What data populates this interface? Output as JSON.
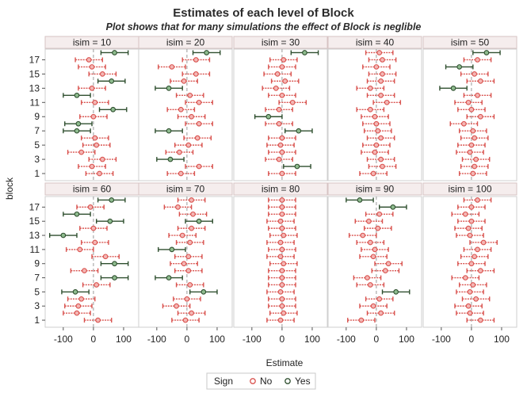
{
  "chart_data": {
    "type": "scatter",
    "title": "Estimates of each level of Block",
    "subtitle": "Plot shows that for many simulations the effect of Block is neglible",
    "xlabel": "Estimate",
    "ylabel": "block",
    "xlim": [
      -160,
      150
    ],
    "ylim": [
      0,
      18.5
    ],
    "x_ticks": [
      -100,
      0,
      100
    ],
    "y_ticks": [
      1,
      3,
      5,
      7,
      9,
      11,
      13,
      15,
      17
    ],
    "grid": false,
    "reference_line_x": 0,
    "legend": {
      "title": "Sign",
      "entries": [
        "No",
        "Yes"
      ],
      "placement": "bottom"
    },
    "colors": {
      "No": "#d9534f",
      "Yes": "#2f4f2f"
    },
    "panels": [
      {
        "label": "isim = 10",
        "estimates": [
          20,
          -5,
          30,
          -40,
          10,
          5,
          -55,
          -50,
          0,
          65,
          5,
          -55,
          -5,
          60,
          30,
          -5,
          -15,
          70
        ],
        "halfwidth": [
          45,
          45,
          45,
          45,
          45,
          45,
          45,
          45,
          45,
          45,
          45,
          45,
          45,
          45,
          45,
          45,
          45,
          45
        ],
        "sign": [
          "No",
          "No",
          "No",
          "No",
          "No",
          "No",
          "Yes",
          "Yes",
          "No",
          "Yes",
          "No",
          "Yes",
          "No",
          "Yes",
          "No",
          "No",
          "No",
          "Yes"
        ]
      },
      {
        "label": "isim = 20",
        "estimates": [
          -20,
          40,
          -55,
          -25,
          5,
          35,
          -60,
          40,
          15,
          -20,
          40,
          10,
          -60,
          -10,
          30,
          -50,
          30,
          65
        ],
        "halfwidth": [
          45,
          45,
          45,
          45,
          45,
          45,
          45,
          45,
          45,
          45,
          45,
          45,
          45,
          45,
          45,
          45,
          45,
          45
        ],
        "sign": [
          "No",
          "No",
          "Yes",
          "No",
          "No",
          "No",
          "Yes",
          "No",
          "No",
          "No",
          "No",
          "No",
          "Yes",
          "No",
          "No",
          "No",
          "No",
          "Yes"
        ]
      },
      {
        "label": "isim = 30",
        "estimates": [
          0,
          50,
          -10,
          0,
          -5,
          0,
          55,
          -10,
          -45,
          -10,
          35,
          0,
          -20,
          10,
          -15,
          0,
          5,
          75
        ],
        "halfwidth": [
          45,
          45,
          45,
          45,
          45,
          45,
          45,
          45,
          45,
          45,
          45,
          45,
          45,
          45,
          45,
          45,
          45,
          45
        ],
        "sign": [
          "No",
          "Yes",
          "No",
          "No",
          "No",
          "No",
          "Yes",
          "No",
          "Yes",
          "No",
          "No",
          "No",
          "No",
          "No",
          "No",
          "No",
          "No",
          "Yes"
        ]
      },
      {
        "label": "isim = 40",
        "estimates": [
          -10,
          20,
          15,
          -5,
          0,
          15,
          5,
          0,
          -5,
          -20,
          35,
          15,
          -20,
          15,
          20,
          0,
          20,
          10
        ],
        "halfwidth": [
          45,
          45,
          45,
          45,
          45,
          45,
          45,
          45,
          45,
          45,
          45,
          45,
          45,
          45,
          45,
          45,
          45,
          45
        ],
        "sign": [
          "No",
          "No",
          "No",
          "No",
          "No",
          "No",
          "No",
          "No",
          "No",
          "No",
          "No",
          "No",
          "No",
          "No",
          "No",
          "No",
          "No",
          "No"
        ]
      },
      {
        "label": "isim = 50",
        "estimates": [
          5,
          10,
          15,
          -5,
          0,
          10,
          5,
          -25,
          30,
          0,
          -10,
          20,
          -60,
          30,
          10,
          -40,
          20,
          50
        ],
        "halfwidth": [
          45,
          45,
          45,
          45,
          45,
          45,
          45,
          45,
          45,
          45,
          45,
          45,
          45,
          45,
          45,
          45,
          45,
          45
        ],
        "sign": [
          "No",
          "No",
          "No",
          "No",
          "No",
          "No",
          "No",
          "No",
          "No",
          "No",
          "No",
          "No",
          "Yes",
          "No",
          "No",
          "Yes",
          "No",
          "Yes"
        ]
      },
      {
        "label": "isim = 60",
        "estimates": [
          15,
          -55,
          -50,
          -40,
          -60,
          10,
          70,
          -30,
          70,
          40,
          -45,
          5,
          -100,
          0,
          55,
          -55,
          -10,
          60
        ],
        "halfwidth": [
          45,
          45,
          45,
          45,
          45,
          45,
          45,
          45,
          45,
          45,
          45,
          45,
          45,
          45,
          45,
          45,
          45,
          45
        ],
        "sign": [
          "No",
          "No",
          "No",
          "No",
          "Yes",
          "No",
          "Yes",
          "No",
          "Yes",
          "No",
          "No",
          "No",
          "Yes",
          "No",
          "Yes",
          "Yes",
          "No",
          "Yes"
        ]
      },
      {
        "label": "isim = 70",
        "estimates": [
          -5,
          15,
          -35,
          0,
          55,
          10,
          -60,
          5,
          -10,
          5,
          -50,
          10,
          -15,
          15,
          40,
          20,
          -30,
          15
        ],
        "halfwidth": [
          45,
          45,
          45,
          45,
          45,
          45,
          45,
          45,
          45,
          45,
          45,
          45,
          45,
          45,
          45,
          45,
          45,
          45
        ],
        "sign": [
          "No",
          "No",
          "No",
          "No",
          "Yes",
          "No",
          "Yes",
          "No",
          "No",
          "No",
          "Yes",
          "No",
          "No",
          "No",
          "Yes",
          "No",
          "No",
          "No"
        ]
      },
      {
        "label": "isim = 80",
        "estimates": [
          -5,
          5,
          0,
          0,
          -5,
          0,
          0,
          0,
          5,
          -5,
          0,
          -5,
          5,
          0,
          -5,
          0,
          0,
          0
        ],
        "halfwidth": [
          45,
          45,
          45,
          45,
          45,
          45,
          45,
          45,
          45,
          45,
          45,
          45,
          45,
          45,
          45,
          45,
          45,
          45
        ],
        "sign": [
          "No",
          "No",
          "No",
          "No",
          "No",
          "No",
          "No",
          "No",
          "No",
          "No",
          "No",
          "No",
          "No",
          "No",
          "No",
          "No",
          "No",
          "No"
        ]
      },
      {
        "label": "isim = 90",
        "estimates": [
          -50,
          15,
          -10,
          10,
          65,
          -20,
          -30,
          30,
          40,
          -10,
          -5,
          -20,
          -45,
          5,
          -25,
          10,
          55,
          -55
        ],
        "halfwidth": [
          45,
          45,
          45,
          45,
          45,
          45,
          45,
          45,
          45,
          45,
          45,
          45,
          45,
          45,
          45,
          45,
          45,
          45
        ],
        "sign": [
          "No",
          "No",
          "No",
          "No",
          "Yes",
          "No",
          "No",
          "No",
          "No",
          "No",
          "No",
          "No",
          "No",
          "No",
          "No",
          "No",
          "Yes",
          "Yes"
        ]
      },
      {
        "label": "isim = 100",
        "estimates": [
          30,
          -5,
          -10,
          15,
          -5,
          5,
          -20,
          30,
          0,
          10,
          20,
          40,
          -5,
          -10,
          0,
          -20,
          0,
          20
        ],
        "halfwidth": [
          45,
          45,
          45,
          45,
          45,
          45,
          45,
          45,
          45,
          45,
          45,
          45,
          45,
          45,
          45,
          45,
          45,
          45
        ],
        "sign": [
          "No",
          "No",
          "No",
          "No",
          "No",
          "No",
          "No",
          "No",
          "No",
          "No",
          "No",
          "No",
          "No",
          "No",
          "No",
          "No",
          "No",
          "No"
        ]
      }
    ]
  }
}
